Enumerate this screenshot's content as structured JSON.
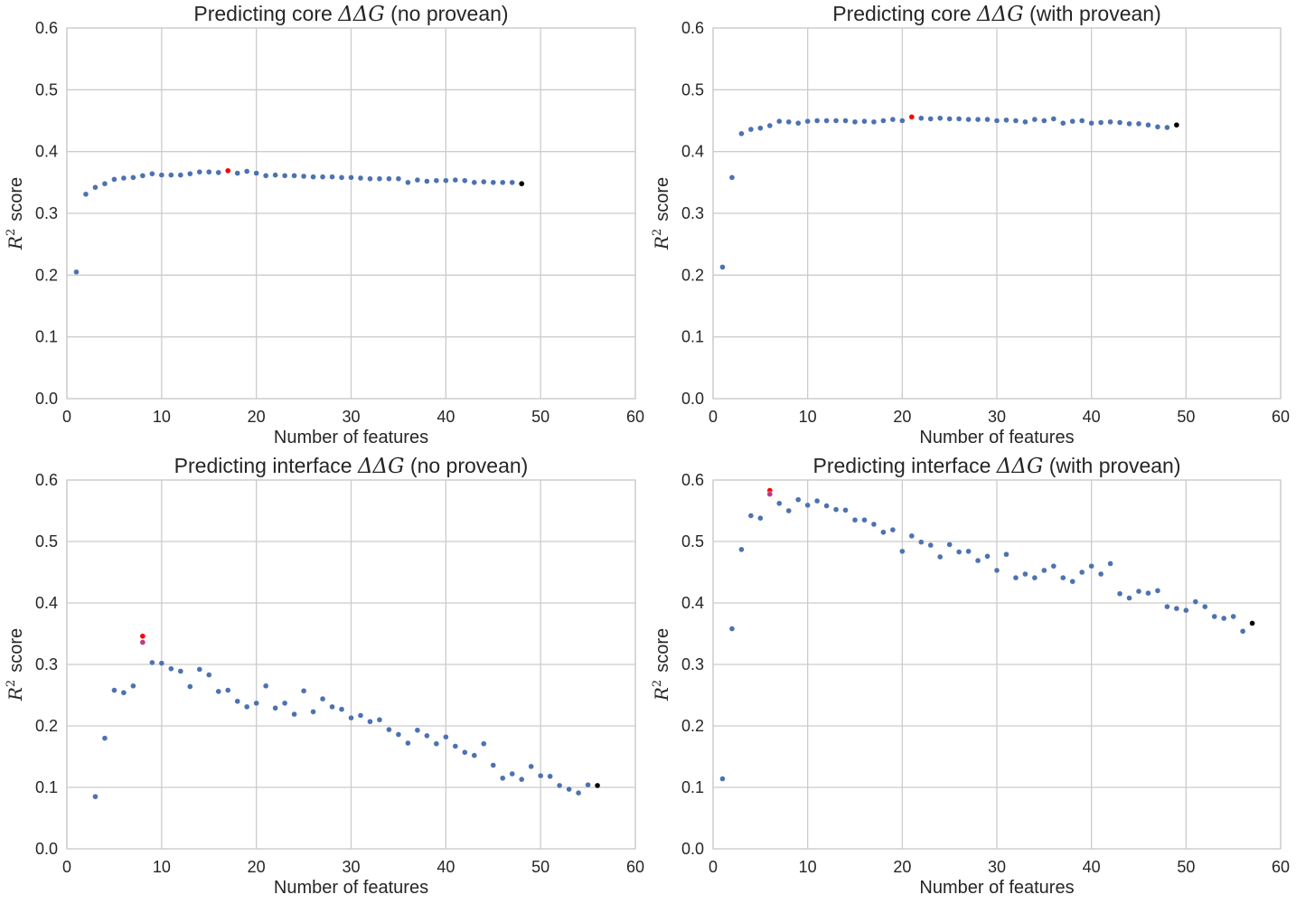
{
  "chart_data": [
    {
      "type": "scatter",
      "title": "Predicting core ΔΔG (no provean)",
      "title_parts": [
        "Predicting core ",
        "ΔΔG",
        " (no provean)"
      ],
      "xlabel": "Number of features",
      "ylabel_parts": [
        "R",
        "2",
        "score"
      ],
      "xlim": [
        0,
        60
      ],
      "ylim": [
        0,
        0.6
      ],
      "xticks": [
        "0",
        "10",
        "20",
        "30",
        "40",
        "50",
        "60"
      ],
      "yticks": [
        "0.0",
        "0.1",
        "0.2",
        "0.3",
        "0.4",
        "0.5",
        "0.6"
      ],
      "grid": true,
      "series": [
        {
          "color": "#4c72b0",
          "points": [
            [
              1,
              0.205
            ],
            [
              2,
              0.331
            ],
            [
              3,
              0.342
            ],
            [
              4,
              0.348
            ],
            [
              5,
              0.355
            ],
            [
              6,
              0.357
            ],
            [
              7,
              0.358
            ],
            [
              8,
              0.361
            ],
            [
              9,
              0.364
            ],
            [
              10,
              0.362
            ],
            [
              11,
              0.362
            ],
            [
              12,
              0.362
            ],
            [
              13,
              0.364
            ],
            [
              14,
              0.367
            ],
            [
              15,
              0.367
            ],
            [
              16,
              0.366
            ],
            [
              18,
              0.365
            ],
            [
              19,
              0.368
            ],
            [
              20,
              0.365
            ],
            [
              21,
              0.361
            ],
            [
              22,
              0.362
            ],
            [
              23,
              0.361
            ],
            [
              24,
              0.361
            ],
            [
              25,
              0.36
            ],
            [
              26,
              0.359
            ],
            [
              27,
              0.359
            ],
            [
              28,
              0.359
            ],
            [
              29,
              0.358
            ],
            [
              30,
              0.358
            ],
            [
              31,
              0.357
            ],
            [
              32,
              0.356
            ],
            [
              33,
              0.356
            ],
            [
              34,
              0.356
            ],
            [
              35,
              0.356
            ],
            [
              36,
              0.35
            ],
            [
              37,
              0.354
            ],
            [
              38,
              0.352
            ],
            [
              39,
              0.353
            ],
            [
              40,
              0.353
            ],
            [
              41,
              0.354
            ],
            [
              42,
              0.353
            ],
            [
              43,
              0.35
            ],
            [
              44,
              0.351
            ],
            [
              45,
              0.35
            ],
            [
              46,
              0.35
            ],
            [
              47,
              0.35
            ],
            [
              48,
              0.348
            ]
          ]
        },
        {
          "color": "#ff0000",
          "points": [
            [
              17,
              0.369
            ]
          ]
        },
        {
          "color": "#000000",
          "points": [
            [
              48,
              0.348
            ]
          ]
        }
      ]
    },
    {
      "type": "scatter",
      "title": "Predicting core ΔΔG (with provean)",
      "title_parts": [
        "Predicting core ",
        "ΔΔG",
        " (with provean)"
      ],
      "xlabel": "Number of features",
      "ylabel_parts": [
        "R",
        "2",
        "score"
      ],
      "xlim": [
        0,
        60
      ],
      "ylim": [
        0,
        0.6
      ],
      "xticks": [
        "0",
        "10",
        "20",
        "30",
        "40",
        "50",
        "60"
      ],
      "yticks": [
        "0.0",
        "0.1",
        "0.2",
        "0.3",
        "0.4",
        "0.5",
        "0.6"
      ],
      "grid": true,
      "series": [
        {
          "color": "#4c72b0",
          "points": [
            [
              1,
              0.213
            ],
            [
              2,
              0.358
            ],
            [
              3,
              0.429
            ],
            [
              4,
              0.436
            ],
            [
              5,
              0.438
            ],
            [
              6,
              0.442
            ],
            [
              7,
              0.449
            ],
            [
              8,
              0.448
            ],
            [
              9,
              0.446
            ],
            [
              10,
              0.449
            ],
            [
              11,
              0.45
            ],
            [
              12,
              0.45
            ],
            [
              13,
              0.45
            ],
            [
              14,
              0.45
            ],
            [
              15,
              0.448
            ],
            [
              16,
              0.449
            ],
            [
              17,
              0.448
            ],
            [
              18,
              0.45
            ],
            [
              19,
              0.452
            ],
            [
              20,
              0.45
            ],
            [
              22,
              0.454
            ],
            [
              23,
              0.453
            ],
            [
              24,
              0.454
            ],
            [
              25,
              0.453
            ],
            [
              26,
              0.453
            ],
            [
              27,
              0.452
            ],
            [
              28,
              0.452
            ],
            [
              29,
              0.452
            ],
            [
              30,
              0.45
            ],
            [
              31,
              0.451
            ],
            [
              32,
              0.45
            ],
            [
              33,
              0.448
            ],
            [
              34,
              0.452
            ],
            [
              35,
              0.45
            ],
            [
              36,
              0.453
            ],
            [
              37,
              0.446
            ],
            [
              38,
              0.449
            ],
            [
              39,
              0.45
            ],
            [
              40,
              0.446
            ],
            [
              41,
              0.447
            ],
            [
              42,
              0.448
            ],
            [
              43,
              0.447
            ],
            [
              44,
              0.445
            ],
            [
              45,
              0.445
            ],
            [
              46,
              0.443
            ],
            [
              47,
              0.44
            ],
            [
              48,
              0.439
            ]
          ]
        },
        {
          "color": "#ff0000",
          "points": [
            [
              21,
              0.456
            ]
          ]
        },
        {
          "color": "#000000",
          "points": [
            [
              49,
              0.443
            ]
          ]
        }
      ]
    },
    {
      "type": "scatter",
      "title": "Predicting interface ΔΔG (no provean)",
      "title_parts": [
        "Predicting interface ",
        "ΔΔG",
        " (no provean)"
      ],
      "xlabel": "Number of features",
      "ylabel_parts": [
        "R",
        "2",
        "score"
      ],
      "xlim": [
        0,
        60
      ],
      "ylim": [
        0,
        0.6
      ],
      "xticks": [
        "0",
        "10",
        "20",
        "30",
        "40",
        "50",
        "60"
      ],
      "yticks": [
        "0.0",
        "0.1",
        "0.2",
        "0.3",
        "0.4",
        "0.5",
        "0.6"
      ],
      "grid": true,
      "series": [
        {
          "color": "#4c72b0",
          "points": [
            [
              3,
              0.085
            ],
            [
              4,
              0.18
            ],
            [
              5,
              0.258
            ],
            [
              6,
              0.254
            ],
            [
              7,
              0.265
            ],
            [
              9,
              0.303
            ],
            [
              10,
              0.302
            ],
            [
              11,
              0.293
            ],
            [
              12,
              0.289
            ],
            [
              13,
              0.264
            ],
            [
              14,
              0.292
            ],
            [
              15,
              0.283
            ],
            [
              16,
              0.256
            ],
            [
              17,
              0.258
            ],
            [
              18,
              0.24
            ],
            [
              19,
              0.231
            ],
            [
              20,
              0.237
            ],
            [
              21,
              0.265
            ],
            [
              22,
              0.229
            ],
            [
              23,
              0.237
            ],
            [
              24,
              0.219
            ],
            [
              25,
              0.257
            ],
            [
              26,
              0.223
            ],
            [
              27,
              0.244
            ],
            [
              28,
              0.231
            ],
            [
              29,
              0.227
            ],
            [
              30,
              0.213
            ],
            [
              31,
              0.217
            ],
            [
              32,
              0.207
            ],
            [
              33,
              0.21
            ],
            [
              34,
              0.194
            ],
            [
              35,
              0.186
            ],
            [
              36,
              0.172
            ],
            [
              37,
              0.193
            ],
            [
              38,
              0.184
            ],
            [
              39,
              0.171
            ],
            [
              40,
              0.182
            ],
            [
              41,
              0.167
            ],
            [
              42,
              0.157
            ],
            [
              43,
              0.152
            ],
            [
              44,
              0.171
            ],
            [
              45,
              0.136
            ],
            [
              46,
              0.115
            ],
            [
              47,
              0.122
            ],
            [
              48,
              0.113
            ],
            [
              49,
              0.134
            ],
            [
              50,
              0.119
            ],
            [
              51,
              0.118
            ],
            [
              52,
              0.103
            ],
            [
              53,
              0.097
            ],
            [
              54,
              0.091
            ],
            [
              55,
              0.104
            ]
          ]
        },
        {
          "color": "#ff0000",
          "points": [
            [
              8,
              0.346
            ]
          ]
        },
        {
          "color": "#c0398a",
          "points": [
            [
              8,
              0.336
            ]
          ]
        },
        {
          "color": "#000000",
          "points": [
            [
              56,
              0.103
            ]
          ]
        }
      ]
    },
    {
      "type": "scatter",
      "title": "Predicting interface ΔΔG (with provean)",
      "title_parts": [
        "Predicting interface ",
        "ΔΔG",
        " (with provean)"
      ],
      "xlabel": "Number of features",
      "ylabel_parts": [
        "R",
        "2",
        "score"
      ],
      "xlim": [
        0,
        60
      ],
      "ylim": [
        0,
        0.6
      ],
      "xticks": [
        "0",
        "10",
        "20",
        "30",
        "40",
        "50",
        "60"
      ],
      "yticks": [
        "0.0",
        "0.1",
        "0.2",
        "0.3",
        "0.4",
        "0.5",
        "0.6"
      ],
      "grid": true,
      "series": [
        {
          "color": "#4c72b0",
          "points": [
            [
              1,
              0.114
            ],
            [
              2,
              0.358
            ],
            [
              3,
              0.487
            ],
            [
              4,
              0.542
            ],
            [
              5,
              0.538
            ],
            [
              7,
              0.562
            ],
            [
              8,
              0.55
            ],
            [
              9,
              0.568
            ],
            [
              10,
              0.559
            ],
            [
              11,
              0.566
            ],
            [
              12,
              0.558
            ],
            [
              13,
              0.552
            ],
            [
              14,
              0.551
            ],
            [
              15,
              0.535
            ],
            [
              16,
              0.535
            ],
            [
              17,
              0.528
            ],
            [
              18,
              0.515
            ],
            [
              19,
              0.519
            ],
            [
              20,
              0.484
            ],
            [
              21,
              0.509
            ],
            [
              22,
              0.499
            ],
            [
              23,
              0.494
            ],
            [
              24,
              0.475
            ],
            [
              25,
              0.495
            ],
            [
              26,
              0.483
            ],
            [
              27,
              0.484
            ],
            [
              28,
              0.469
            ],
            [
              29,
              0.476
            ],
            [
              30,
              0.453
            ],
            [
              31,
              0.479
            ],
            [
              32,
              0.441
            ],
            [
              33,
              0.447
            ],
            [
              34,
              0.441
            ],
            [
              35,
              0.453
            ],
            [
              36,
              0.46
            ],
            [
              37,
              0.441
            ],
            [
              38,
              0.435
            ],
            [
              39,
              0.45
            ],
            [
              40,
              0.46
            ],
            [
              41,
              0.447
            ],
            [
              42,
              0.464
            ],
            [
              43,
              0.415
            ],
            [
              44,
              0.408
            ],
            [
              45,
              0.419
            ],
            [
              46,
              0.416
            ],
            [
              47,
              0.42
            ],
            [
              48,
              0.394
            ],
            [
              49,
              0.391
            ],
            [
              50,
              0.388
            ],
            [
              51,
              0.402
            ],
            [
              52,
              0.394
            ],
            [
              53,
              0.378
            ],
            [
              54,
              0.375
            ],
            [
              55,
              0.378
            ],
            [
              56,
              0.354
            ]
          ]
        },
        {
          "color": "#ff0000",
          "points": [
            [
              6,
              0.583
            ]
          ]
        },
        {
          "color": "#c0398a",
          "points": [
            [
              6,
              0.577
            ]
          ]
        },
        {
          "color": "#000000",
          "points": [
            [
              57,
              0.367
            ]
          ]
        }
      ]
    }
  ]
}
